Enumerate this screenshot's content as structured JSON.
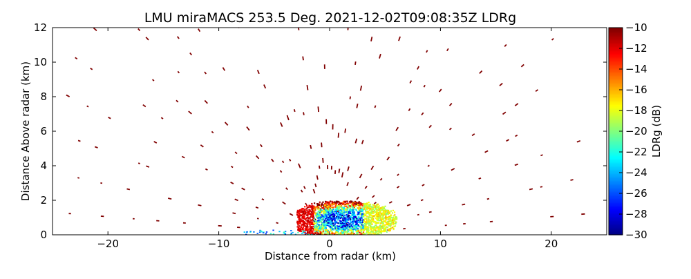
{
  "chart_data": {
    "type": "heatmap",
    "title": "LMU miraMACS 253.5 Deg. 2021-12-02T09:08:35Z  LDRg",
    "xlabel": "Distance from radar (km)",
    "ylabel": "Distance Above radar  (km)",
    "xlim": [
      -25,
      25
    ],
    "ylim": [
      0,
      12
    ],
    "xticks": [
      -20,
      -10,
      0,
      10,
      20
    ],
    "xtick_labels": [
      "−20",
      "−10",
      "0",
      "10",
      "20"
    ],
    "yticks": [
      0,
      2,
      4,
      6,
      8,
      10,
      12
    ],
    "ytick_labels": [
      "0",
      "2",
      "4",
      "6",
      "8",
      "10",
      "12"
    ],
    "colorbar": {
      "label": "LDRg (dB)",
      "min": -30,
      "max": -10,
      "colormap": "jet",
      "ticks": [
        -10,
        -12,
        -14,
        -16,
        -18,
        -20,
        -22,
        -24,
        -26,
        -28,
        -30
      ],
      "tick_labels": [
        "−10",
        "−12",
        "−14",
        "−16",
        "−18",
        "−20",
        "−22",
        "−24",
        "−26",
        "−28",
        "−30"
      ]
    },
    "series": [
      {
        "name": "sparse high-altitude returns (~ -10 dB)",
        "description": "scattered short radial streaks along RHI scan rays, mostly dark red",
        "value_db": -10,
        "extent_x_km": [
          -24,
          23.5
        ],
        "extent_y_km": [
          0,
          12
        ]
      },
      {
        "name": "near-radar echo region",
        "description": "dense mixed values near ground level",
        "extent_x_km": [
          -3,
          6
        ],
        "extent_y_km": [
          0,
          2
        ],
        "value_range_db": [
          -30,
          -10
        ]
      }
    ]
  }
}
